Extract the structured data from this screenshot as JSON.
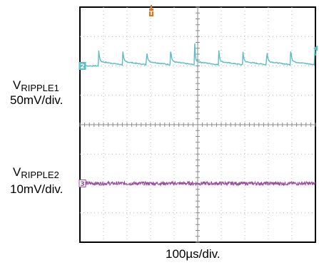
{
  "chart_data": {
    "type": "line",
    "instrument": "oscilloscope",
    "time_scale_label": "100µs/div.",
    "grid": {
      "divisions_x": 10,
      "divisions_y": 8,
      "minor_ticks_per_division": 5,
      "visible": true
    },
    "trigger_marker": {
      "label": "T",
      "color": "#e8721c"
    },
    "channels": [
      {
        "name_main": "V",
        "name_sub": "RIPPLE1",
        "scale": "50mV/div.",
        "channel_number": "2",
        "color": "#5bbccb",
        "baseline_div": 2,
        "waveform": "sawtooth-spikes",
        "period_div": 1.02,
        "first_spike_div": 0.78,
        "spike_height_div": 0.75,
        "step_height_div": 0.32,
        "decay_to_baseline": true
      },
      {
        "name_main": "V",
        "name_sub": "RIPPLE2",
        "scale": "10mV/div.",
        "channel_number": "3",
        "color": "#9b4d9e",
        "baseline_div": -2,
        "waveform": "noise",
        "noise_amplitude_div": 0.06
      }
    ]
  }
}
